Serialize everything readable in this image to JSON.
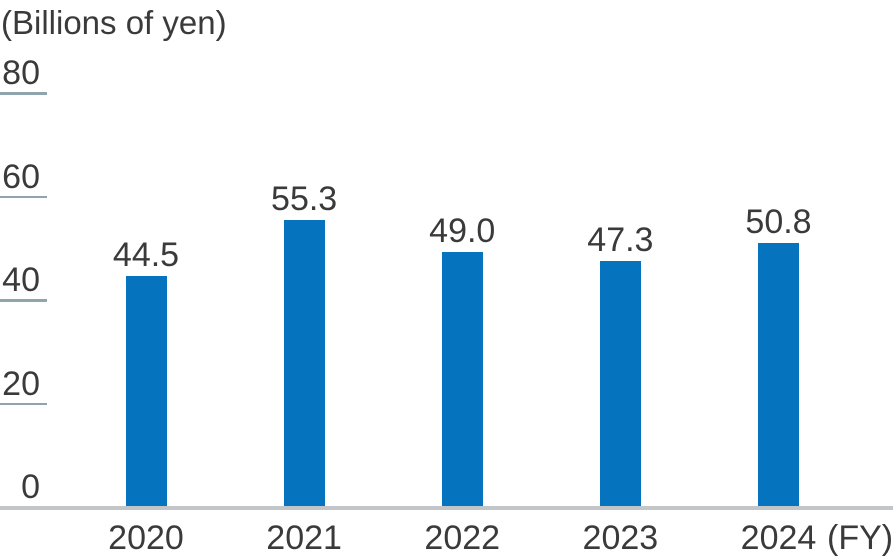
{
  "x_axis_suffix": "(FY)",
  "colors": {
    "bar": "#0673BE",
    "tick_line": "#90A4AE",
    "axis_line": "#C3C6C8",
    "text": "#3A3A3A"
  },
  "chart_data": {
    "type": "bar",
    "title": "(Billions of yen)",
    "categories": [
      "2020",
      "2021",
      "2022",
      "2023",
      "2024"
    ],
    "values": [
      44.5,
      55.3,
      49.0,
      47.3,
      50.8
    ],
    "value_labels": [
      "44.5",
      "55.3",
      "49.0",
      "47.3",
      "50.8"
    ],
    "xlabel": "FY",
    "ylabel": "Billions of yen",
    "ylim": [
      0,
      80
    ],
    "yticks": [
      0,
      20,
      40,
      60,
      80
    ],
    "grid": false,
    "legend": false,
    "bar_color": "#0673BE",
    "x_suffix_label": "(FY)"
  }
}
